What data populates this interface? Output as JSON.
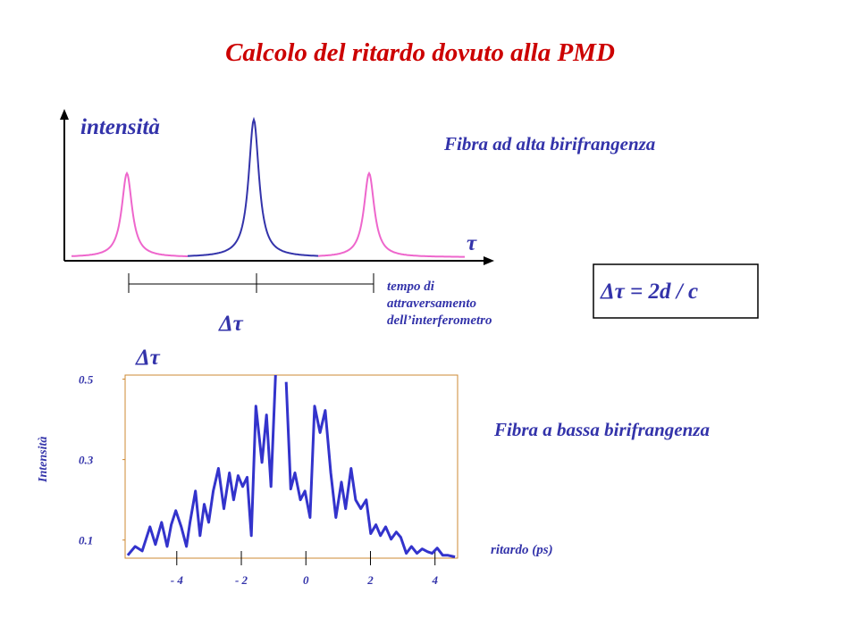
{
  "title": "Calcolo del ritardo dovuto alla PMD",
  "schematic": {
    "y_label": "intensità",
    "x_label": "τ",
    "delay_label": "Δτ",
    "note": [
      "tempo di",
      "attraversamento",
      "dell’interferometro"
    ]
  },
  "high_birefringence": "Fibra ad alta birifrangenza",
  "formula": "Δτ = 2d / c",
  "low_birefringence": "Fibra a bassa birifrangenza",
  "chart_data": {
    "type": "line",
    "title": "Δτ",
    "y_label": "Intensità",
    "x_label": "ritardo (ps)",
    "color": "#3333cc",
    "frame_color": "#cc8833",
    "xlim": [
      -5.6,
      4.7
    ],
    "ylim": [
      0.055,
      0.51
    ],
    "xticks": [
      {
        "value": -4,
        "label": "- 4"
      },
      {
        "value": -2,
        "label": "- 2"
      },
      0,
      2,
      4
    ],
    "yticks": [
      0.1,
      0.3,
      0.5
    ],
    "x": [
      -5.52,
      -5.29,
      -5.07,
      -4.83,
      -4.66,
      -4.47,
      -4.3,
      -4.17,
      -4.03,
      -3.86,
      -3.7,
      -3.59,
      -3.42,
      -3.28,
      -3.15,
      -3.01,
      -2.87,
      -2.71,
      -2.54,
      -2.37,
      -2.24,
      -2.1,
      -1.96,
      -1.82,
      -1.69,
      -1.55,
      -1.36,
      -1.22,
      -1.08,
      -0.94,
      -0.75,
      -0.61,
      -0.47,
      -0.34,
      -0.17,
      -0.03,
      0.13,
      0.27,
      0.44,
      0.6,
      0.77,
      0.93,
      1.1,
      1.23,
      1.4,
      1.54,
      1.7,
      1.87,
      2.01,
      2.17,
      2.31,
      2.47,
      2.64,
      2.8,
      2.94,
      3.11,
      3.27,
      3.44,
      3.6,
      3.77,
      3.91,
      4.07,
      4.24,
      4.4,
      4.62
    ],
    "values": [
      0.062,
      0.084,
      0.073,
      0.133,
      0.089,
      0.144,
      0.084,
      0.138,
      0.173,
      0.133,
      0.084,
      0.144,
      0.222,
      0.111,
      0.189,
      0.144,
      0.222,
      0.278,
      0.178,
      0.267,
      0.2,
      0.26,
      0.233,
      0.256,
      0.111,
      0.433,
      0.293,
      0.411,
      0.233,
      0.51,
      null,
      0.493,
      0.227,
      0.267,
      0.2,
      0.222,
      0.156,
      0.433,
      0.367,
      0.422,
      0.267,
      0.156,
      0.244,
      0.178,
      0.278,
      0.2,
      0.178,
      0.2,
      0.116,
      0.138,
      0.111,
      0.133,
      0.102,
      0.12,
      0.107,
      0.067,
      0.084,
      0.067,
      0.078,
      0.071,
      0.067,
      0.08,
      0.062,
      0.062,
      0.058
    ]
  }
}
